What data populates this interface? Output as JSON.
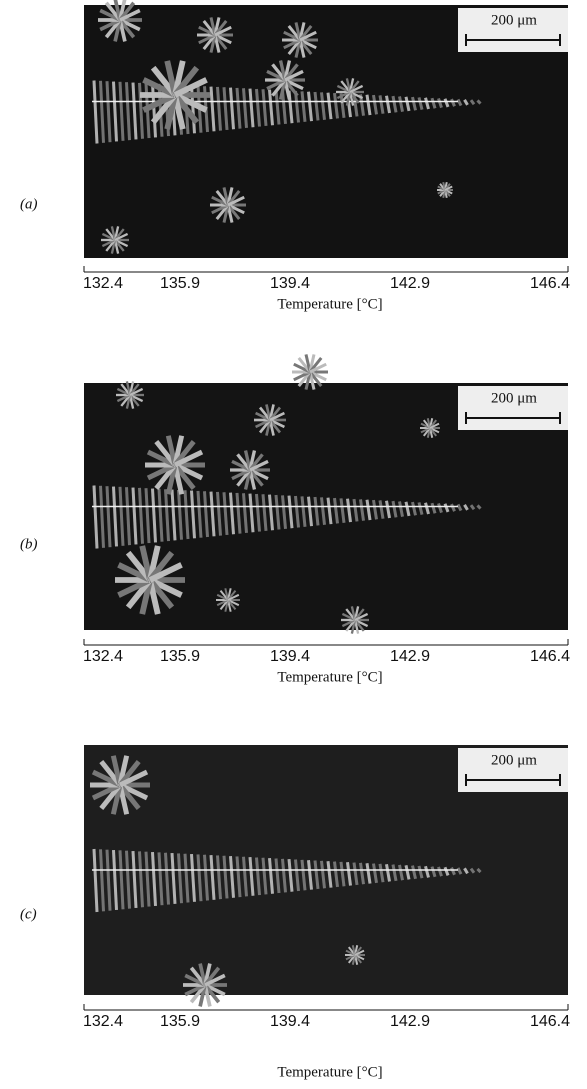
{
  "panels": [
    {
      "label": "(a)",
      "scale_bar": "200 μm",
      "ticks": [
        132.4,
        135.9,
        139.4,
        142.9,
        146.4
      ],
      "axis_label": "Temperature [°C]"
    },
    {
      "label": "(b)",
      "scale_bar": "200 μm",
      "ticks": [
        132.4,
        135.9,
        139.4,
        142.9,
        146.4
      ],
      "axis_label": "Temperature [°C]"
    },
    {
      "label": "(c)",
      "scale_bar": "200 μm",
      "ticks": [
        132.4,
        135.9,
        139.4,
        142.9,
        146.4
      ],
      "axis_label": "Temperature [°C]"
    }
  ]
}
